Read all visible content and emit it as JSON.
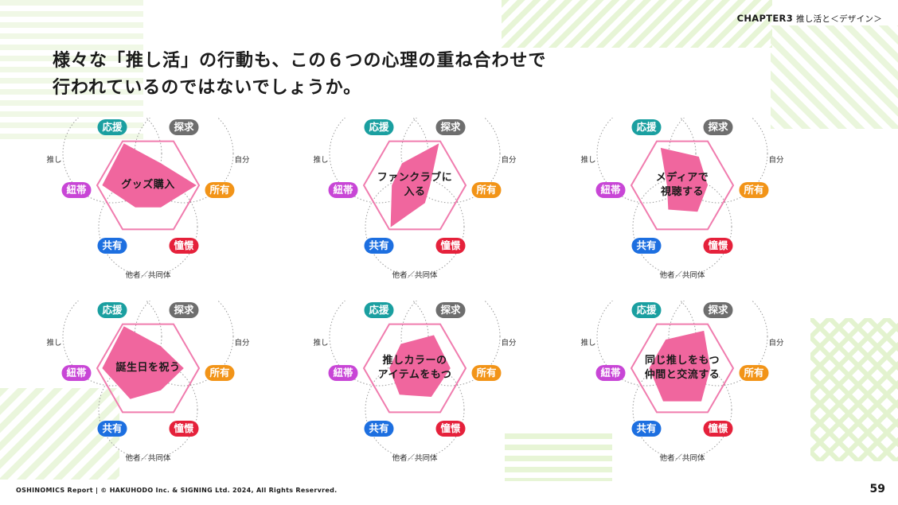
{
  "header": {
    "chapter": "CHAPTER3",
    "chapter_sub": "推し活と＜デザイン＞"
  },
  "headline": {
    "line1": "様々な「推し活」の行動も、この６つの心理の重ね合わせで",
    "line2": "行われているのではないでしょうか。"
  },
  "labels": {
    "ouen": "応援",
    "tankyu": "探求",
    "shoyu": "所有",
    "shoukei": "憧憬",
    "kyouyu": "共有",
    "chuutai": "紐帯",
    "oshi": "推し",
    "jibun": "自分",
    "tasha": "他者／共同体"
  },
  "colors": {
    "ouen": "#1a9fa0",
    "tankyu": "#6e6e6e",
    "shoyu": "#f29418",
    "shoukei": "#e5213b",
    "kyouyu": "#1d6fe0",
    "chuutai": "#c846d6",
    "hexagon": "#f07cae",
    "shape": "#f0669e"
  },
  "chart_data": {
    "type": "radar",
    "axes": [
      "応援",
      "探求",
      "所有",
      "憧憬",
      "共有",
      "紐帯"
    ],
    "diagrams": [
      {
        "activity": [
          "グッズ購入"
        ],
        "values": [
          0.95,
          0.5,
          0.95,
          0.5,
          0.5,
          0.9
        ]
      },
      {
        "activity": [
          "ファンクラブに",
          "入る"
        ],
        "values": [
          0.5,
          0.95,
          0.3,
          0.4,
          0.95,
          0.45
        ]
      },
      {
        "activity": [
          "メディアで",
          "視聴する"
        ],
        "values": [
          0.85,
          0.65,
          0.5,
          0.6,
          0.55,
          0.3
        ]
      },
      {
        "activity": [
          "誕生日を祝う"
        ],
        "values": [
          0.95,
          0.5,
          0.7,
          0.5,
          0.7,
          0.9
        ]
      },
      {
        "activity": [
          "推しカラーの",
          "アイテムをもつ"
        ],
        "values": [
          0.55,
          0.75,
          0.7,
          0.65,
          0.6,
          0.5
        ]
      },
      {
        "activity": [
          "同じ推しをもつ",
          "仲間と交流する"
        ],
        "values": [
          0.65,
          0.85,
          0.55,
          0.75,
          0.75,
          0.65
        ]
      }
    ]
  },
  "footer": {
    "copyright": "OSHINOMICS Report | © HAKUHODO Inc. & SIGNING Ltd. 2024, All Rights Reservred.",
    "page": "59"
  }
}
